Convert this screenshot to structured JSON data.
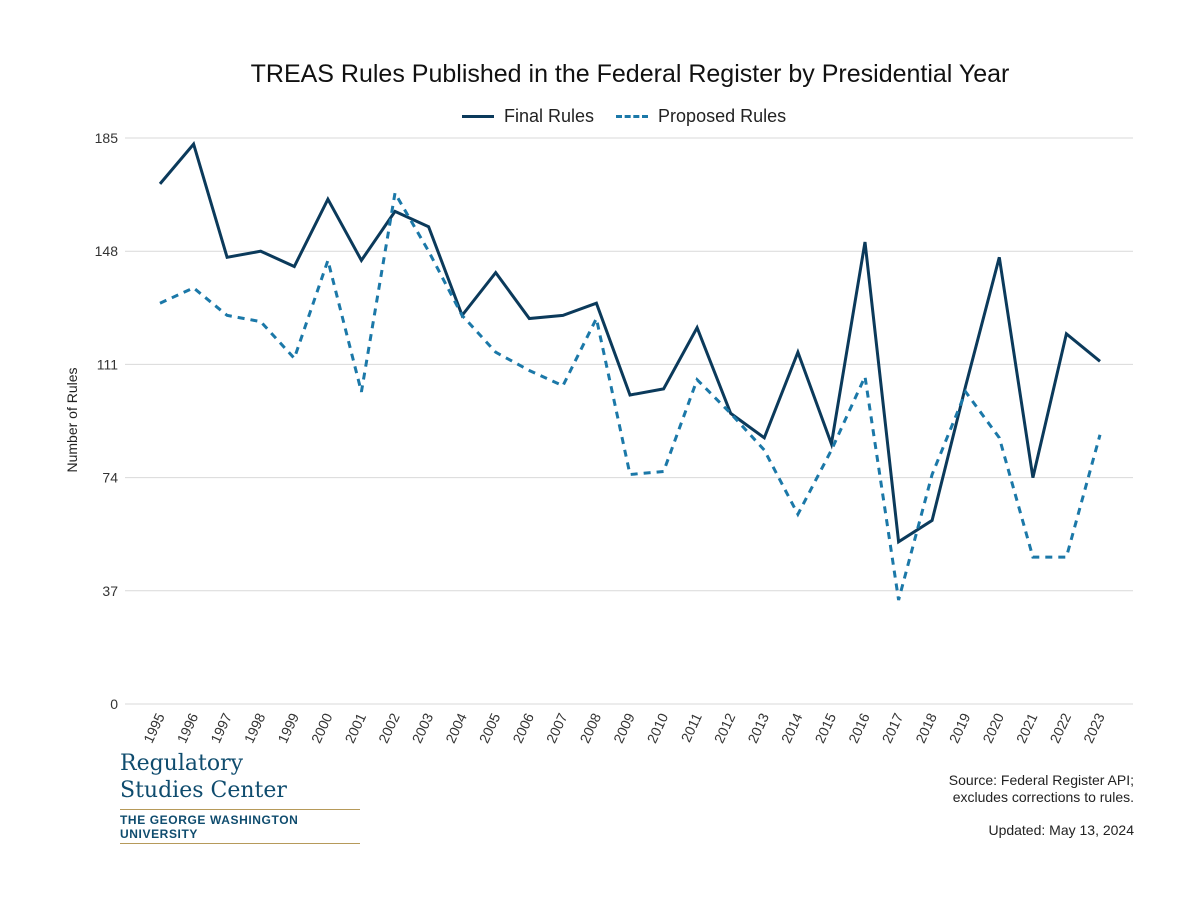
{
  "chart_data": {
    "type": "line",
    "title": "TREAS Rules Published in the Federal Register by Presidential Year",
    "ylabel": "Number of Rules",
    "xlabel": "",
    "ylim": [
      0,
      185
    ],
    "yticks": [
      0,
      37,
      74,
      111,
      148,
      185
    ],
    "grid": true,
    "legend_position": "top-center",
    "x": [
      "1995",
      "1996",
      "1997",
      "1998",
      "1999",
      "2000",
      "2001",
      "2002",
      "2003",
      "2004",
      "2005",
      "2006",
      "2007",
      "2008",
      "2009",
      "2010",
      "2011",
      "2012",
      "2013",
      "2014",
      "2015",
      "2016",
      "2017",
      "2018",
      "2019",
      "2020",
      "2021",
      "2022",
      "2023"
    ],
    "series": [
      {
        "name": "Final Rules",
        "style": "solid",
        "color": "#0b3a5b",
        "values": [
          170,
          183,
          146,
          148,
          143,
          165,
          145,
          161,
          156,
          127,
          141,
          126,
          127,
          131,
          101,
          103,
          123,
          95,
          87,
          115,
          85,
          151,
          53,
          60,
          104,
          146,
          74,
          121,
          112
        ]
      },
      {
        "name": "Proposed Rules",
        "style": "dashed",
        "color": "#1b78a8",
        "values": [
          131,
          136,
          127,
          125,
          113,
          145,
          102,
          167,
          148,
          127,
          115,
          109,
          104,
          126,
          75,
          76,
          106,
          95,
          83,
          62,
          83,
          107,
          34,
          75,
          102,
          87,
          48,
          48,
          88
        ]
      }
    ]
  },
  "branding": {
    "line1": "Regulatory",
    "line2": "Studies Center",
    "university": "THE GEORGE WASHINGTON UNIVERSITY"
  },
  "source": {
    "line1": "Source: Federal Register API;",
    "line2": "excludes corrections to rules."
  },
  "updated": "Updated: May 13, 2024"
}
